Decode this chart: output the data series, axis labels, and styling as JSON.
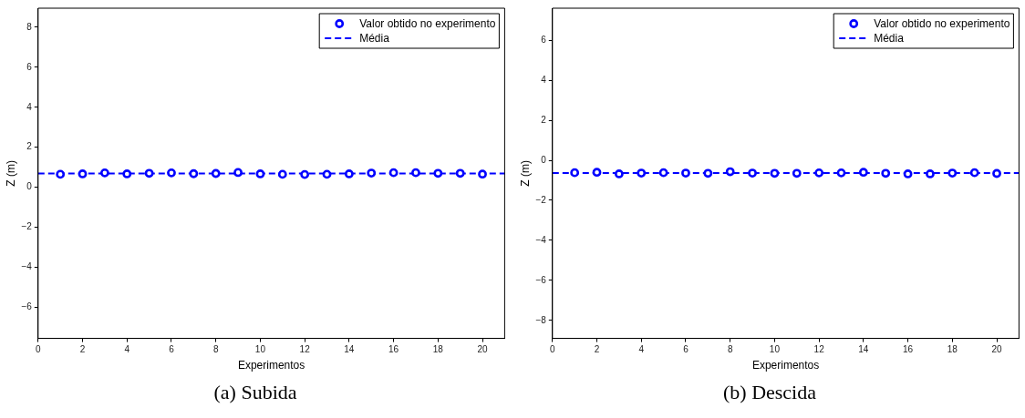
{
  "chart_data": [
    {
      "type": "scatter",
      "title": "(a) Subida",
      "xlabel": "Experimentos",
      "ylabel": "Z (m)",
      "xlim": [
        0,
        21
      ],
      "xticks": [
        0,
        2,
        4,
        6,
        8,
        10,
        12,
        14,
        16,
        18,
        20
      ],
      "ylim": [
        -7.55,
        8.95
      ],
      "yticks": [
        -6,
        -4,
        -2,
        0,
        2,
        4,
        6,
        8
      ],
      "legend": "top right",
      "series": [
        {
          "name": "Valor obtido no experimento",
          "type": "scatter",
          "marker": "circle",
          "color": "#0000ff",
          "x": [
            1,
            2,
            3,
            4,
            5,
            6,
            7,
            8,
            9,
            10,
            11,
            12,
            13,
            14,
            15,
            16,
            17,
            18,
            19,
            20
          ],
          "values": [
            0.65,
            0.67,
            0.72,
            0.67,
            0.7,
            0.72,
            0.68,
            0.69,
            0.74,
            0.67,
            0.65,
            0.64,
            0.65,
            0.67,
            0.71,
            0.73,
            0.73,
            0.7,
            0.7,
            0.66
          ]
        },
        {
          "name": "Média",
          "type": "line",
          "marker": "none",
          "line_style": "dashed",
          "color": "#0000ff",
          "x": [
            0,
            21
          ],
          "values": [
            0.69,
            0.69
          ]
        }
      ]
    },
    {
      "type": "scatter",
      "title": "(b) Descida",
      "xlabel": "Experimentos",
      "ylabel": "Z (m)",
      "xlim": [
        0,
        21
      ],
      "xticks": [
        0,
        2,
        4,
        6,
        8,
        10,
        12,
        14,
        16,
        18,
        20
      ],
      "ylim": [
        -8.9,
        7.6
      ],
      "yticks": [
        -8,
        -6,
        -4,
        -2,
        0,
        2,
        4,
        6
      ],
      "legend": "top right",
      "series": [
        {
          "name": "Valor obtido no experimento",
          "type": "scatter",
          "marker": "circle",
          "color": "#0000ff",
          "x": [
            1,
            2,
            3,
            4,
            5,
            6,
            7,
            8,
            9,
            10,
            11,
            12,
            13,
            14,
            15,
            16,
            17,
            18,
            19,
            20
          ],
          "values": [
            -0.62,
            -0.6,
            -0.68,
            -0.64,
            -0.62,
            -0.64,
            -0.65,
            -0.57,
            -0.64,
            -0.65,
            -0.65,
            -0.63,
            -0.63,
            -0.6,
            -0.65,
            -0.68,
            -0.68,
            -0.64,
            -0.62,
            -0.66
          ]
        },
        {
          "name": "Média",
          "type": "line",
          "marker": "none",
          "line_style": "dashed",
          "color": "#0000ff",
          "x": [
            0,
            21
          ],
          "values": [
            -0.64,
            -0.64
          ]
        }
      ]
    }
  ]
}
